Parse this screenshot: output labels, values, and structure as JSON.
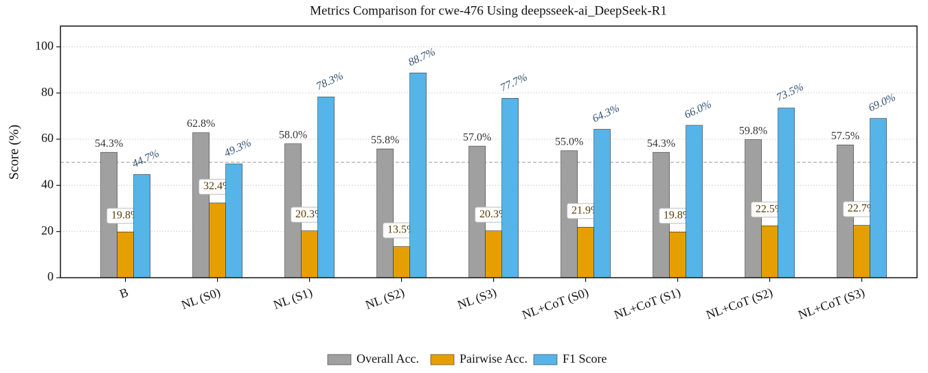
{
  "chart_data": {
    "type": "bar",
    "title": "Metrics Comparison for cwe-476 Using deepsseek-ai_DeepSeek-R1",
    "y_label": "Score (%)",
    "categories": [
      "B",
      "NL (S0)",
      "NL (S1)",
      "NL (S2)",
      "NL (S3)",
      "NL+CoT (S0)",
      "NL+CoT (S1)",
      "NL+CoT (S2)",
      "NL+CoT (S3)"
    ],
    "series": [
      {
        "name": "Overall Acc.",
        "color": "#a0a0a0",
        "values": [
          54.3,
          62.8,
          58.0,
          55.8,
          57.0,
          55.0,
          54.3,
          59.8,
          57.5
        ],
        "value_labels": [
          "54.3%",
          "62.8%",
          "58.0%",
          "55.8%",
          "57.0%",
          "55.0%",
          "54.3%",
          "59.8%",
          "57.5%"
        ]
      },
      {
        "name": "Pairwise Acc.",
        "color": "#e69f00",
        "values": [
          19.8,
          32.4,
          20.3,
          13.5,
          20.3,
          21.9,
          19.8,
          22.5,
          22.7
        ],
        "value_labels": [
          "19.8%",
          "32.4%",
          "20.3%",
          "13.5%",
          "20.3%",
          "21.9%",
          "19.8%",
          "22.5%",
          "22.7%"
        ]
      },
      {
        "name": "F1 Score",
        "color": "#56b4e9",
        "values": [
          44.7,
          49.3,
          78.3,
          88.7,
          77.7,
          64.3,
          66.0,
          73.5,
          69.0
        ],
        "value_labels": [
          "44.7%",
          "49.3%",
          "78.3%",
          "88.7%",
          "77.7%",
          "64.3%",
          "66.0%",
          "73.5%",
          "69.0%"
        ]
      }
    ],
    "ylim": [
      0,
      109
    ],
    "yticks": [
      0,
      20,
      40,
      60,
      80,
      100
    ],
    "grid": true,
    "reference_line": 50,
    "legend": "bottom"
  }
}
